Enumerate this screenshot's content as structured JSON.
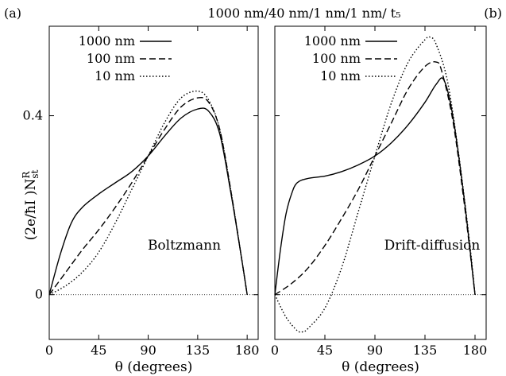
{
  "title": "1000 nm/40 nm/1 nm/1 nm/ t₅",
  "ylabel": "(2e/ħI )N",
  "ylabel_sub": "st",
  "ylabel_sup": "R",
  "chart_data": [
    {
      "type": "line",
      "panel_label": "(a)",
      "annotation": "Boltzmann",
      "xlabel": "θ (degrees)",
      "xlim": [
        0,
        190
      ],
      "ylim": [
        -0.1,
        0.6
      ],
      "xticks": [
        0,
        45,
        90,
        135,
        180
      ],
      "yticks": [
        0,
        0.4
      ],
      "ytick_labels": [
        "0",
        "0.4"
      ],
      "series": [
        {
          "name": "1000 nm",
          "style": "solid",
          "x": [
            0,
            10,
            20,
            30,
            45,
            60,
            75,
            90,
            105,
            120,
            135,
            145,
            155,
            165,
            175,
            180
          ],
          "y": [
            0,
            0.09,
            0.16,
            0.195,
            0.225,
            0.25,
            0.275,
            0.31,
            0.355,
            0.395,
            0.415,
            0.41,
            0.36,
            0.23,
            0.08,
            0
          ]
        },
        {
          "name": "100 nm",
          "style": "dashed",
          "x": [
            0,
            15,
            30,
            45,
            60,
            75,
            90,
            105,
            120,
            135,
            145,
            155,
            165,
            175,
            180
          ],
          "y": [
            0,
            0.05,
            0.1,
            0.145,
            0.195,
            0.25,
            0.31,
            0.37,
            0.42,
            0.44,
            0.43,
            0.37,
            0.235,
            0.08,
            0
          ]
        },
        {
          "name": "10 nm",
          "style": "dotted",
          "x": [
            0,
            15,
            30,
            45,
            60,
            75,
            90,
            105,
            120,
            135,
            145,
            155,
            165,
            175,
            180
          ],
          "y": [
            0,
            0.02,
            0.05,
            0.095,
            0.16,
            0.235,
            0.31,
            0.385,
            0.44,
            0.455,
            0.435,
            0.37,
            0.235,
            0.08,
            0
          ]
        }
      ]
    },
    {
      "type": "line",
      "panel_label": "(b)",
      "annotation": "Drift-diffusion",
      "xlabel": "θ (degrees)",
      "xlim": [
        0,
        190
      ],
      "ylim": [
        -0.1,
        0.6
      ],
      "xticks": [
        0,
        45,
        90,
        135,
        180
      ],
      "yticks": [
        0,
        0.4
      ],
      "series": [
        {
          "name": "1000 nm",
          "style": "solid",
          "x": [
            0,
            5,
            10,
            15,
            20,
            30,
            45,
            60,
            75,
            90,
            105,
            120,
            135,
            145,
            152,
            160,
            170,
            180
          ],
          "y": [
            0,
            0.1,
            0.18,
            0.225,
            0.25,
            0.26,
            0.265,
            0.275,
            0.29,
            0.31,
            0.34,
            0.38,
            0.43,
            0.47,
            0.48,
            0.4,
            0.22,
            0
          ]
        },
        {
          "name": "100 nm",
          "style": "dashed",
          "x": [
            0,
            15,
            30,
            45,
            60,
            75,
            90,
            105,
            120,
            135,
            145,
            150,
            160,
            170,
            180
          ],
          "y": [
            0,
            0.025,
            0.06,
            0.11,
            0.17,
            0.235,
            0.31,
            0.385,
            0.46,
            0.51,
            0.52,
            0.5,
            0.39,
            0.21,
            0
          ]
        },
        {
          "name": "10 nm",
          "style": "dotted",
          "x": [
            0,
            10,
            20,
            25,
            30,
            45,
            60,
            75,
            90,
            105,
            120,
            135,
            140,
            145,
            155,
            165,
            175,
            180
          ],
          "y": [
            0,
            -0.05,
            -0.08,
            -0.083,
            -0.075,
            -0.03,
            0.06,
            0.185,
            0.31,
            0.43,
            0.52,
            0.57,
            0.575,
            0.56,
            0.48,
            0.32,
            0.12,
            0
          ]
        }
      ]
    }
  ]
}
